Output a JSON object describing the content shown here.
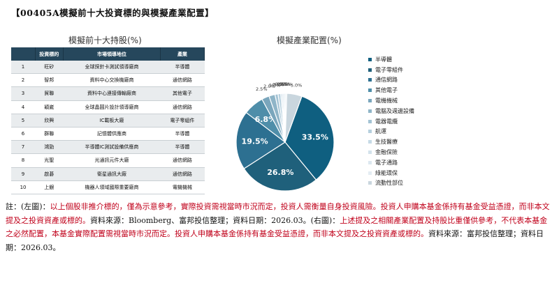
{
  "page_title": "【00405A模擬前十大投資標的與模擬產業配置】",
  "table": {
    "title": "模擬前十大持股(%)",
    "headers": [
      "",
      "投資標的",
      "市場領導地位",
      "產業"
    ],
    "rows": [
      [
        "1",
        "旺矽",
        "全球探針卡測試領導廠商",
        "半導體"
      ],
      [
        "2",
        "智邦",
        "資料中心交換機廠商",
        "通信網路"
      ],
      [
        "3",
        "貿聯",
        "資料中心連接傳輸廠商",
        "其他電子"
      ],
      [
        "4",
        "穎崴",
        "全球晶圓片設計領導廠商",
        "通信網路"
      ],
      [
        "5",
        "欣興",
        "IC載板大廠",
        "電子零組件"
      ],
      [
        "6",
        "群聯",
        "記憶體供應商",
        "半導體"
      ],
      [
        "7",
        "鴻勁",
        "半導體IC測試設備供應商",
        "半導體"
      ],
      [
        "8",
        "光聖",
        "光通訊元件大廠",
        "通信網路"
      ],
      [
        "9",
        "啟碁",
        "衛星通訊大廠",
        "通信網路"
      ],
      [
        "10",
        "上銀",
        "機器人領域國際重要廠商",
        "電機機械"
      ]
    ]
  },
  "pie_title": "模擬產業配置(%)",
  "chart_data": {
    "type": "pie",
    "title": "模擬產業配置(%)",
    "slices": [
      {
        "label": "半導體",
        "value": 33.5,
        "display": "33.5%",
        "color": "#0f5f80"
      },
      {
        "label": "電子零組件",
        "value": 26.8,
        "display": "26.8%",
        "color": "#1f607b"
      },
      {
        "label": "通信網路",
        "value": 19.5,
        "display": "19.5%",
        "color": "#2d7091"
      },
      {
        "label": "其他電子",
        "value": 6.8,
        "display": "6.8%",
        "color": "#4f8ea9"
      },
      {
        "label": "電機機械",
        "value": 2.5,
        "display": "2.5%",
        "color": "#7aa6bc"
      },
      {
        "label": "電腦及週邊設備",
        "value": 2.0,
        "display": "2.0%",
        "color": "#8fb5c8"
      },
      {
        "label": "電器電纜",
        "value": 1.0,
        "display": "1.0%",
        "color": "#a3c3d4"
      },
      {
        "label": "航運",
        "value": 0.9,
        "display": "0.9%",
        "color": "#b6d0de"
      },
      {
        "label": "生技醫療",
        "value": 0.5,
        "display": "0.5%",
        "color": "#c6dae6"
      },
      {
        "label": "金融保險",
        "value": 0.5,
        "display": "0.5%",
        "color": "#d3e2ec"
      },
      {
        "label": "電子通路",
        "value": 0.5,
        "display": "0.5%",
        "color": "#dce8f0"
      },
      {
        "label": "綠能環保",
        "value": 0.5,
        "display": "0.5%",
        "color": "#e4edf3"
      },
      {
        "label": "流動性部位",
        "value": 5.0,
        "display": "5.0%",
        "color": "#c9d6de"
      }
    ]
  },
  "notes": {
    "prefix": "註：(左圖)：",
    "red1": "以上個股非推介標的，僅為示意參考，實際投資需視當時市況而定，投資人需衡量自身投資風險。投資人申購本基金係持有基金受益憑證，而非本文提及之投資資產或標的。",
    "source1": "資料來源：Bloomberg、富邦投信整理；資料日期：2026.03。(右圖)：",
    "red2": "上述提及之相關產業配置及持股比重僅供參考，不代表本基金之必然配置，本基金實際配置需視當時市況而定。投資人申購本基金係持有基金受益憑證，而非本文提及之投資資產或標的。",
    "source2": "資料來源：富邦投信整理；資料日期：2026.03。"
  }
}
